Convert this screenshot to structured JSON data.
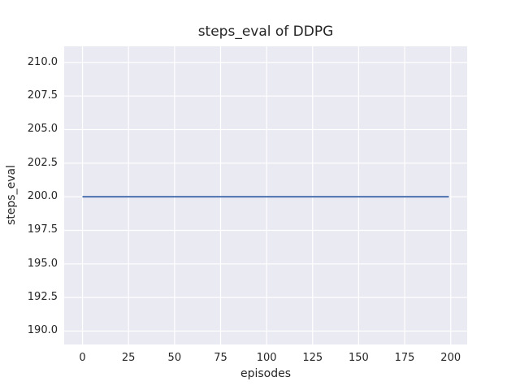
{
  "figure": {
    "background_color": "#ffffff",
    "plot_background_color": "#eaeaf2",
    "grid_color": "#ffffff",
    "text_color": "#262626"
  },
  "chart_data": {
    "type": "line",
    "title": "steps_eval of DDPG",
    "xlabel": "episodes",
    "ylabel": "steps_eval",
    "xlim": [
      -9.95,
      208.95
    ],
    "ylim": [
      189.0,
      211.2
    ],
    "grid": true,
    "legend": false,
    "xticks": {
      "values": [
        0,
        25,
        50,
        75,
        100,
        125,
        150,
        175,
        200
      ],
      "labels": [
        "0",
        "25",
        "50",
        "75",
        "100",
        "125",
        "150",
        "175",
        "200"
      ]
    },
    "yticks": {
      "values": [
        190.0,
        192.5,
        195.0,
        197.5,
        200.0,
        202.5,
        205.0,
        207.5,
        210.0
      ],
      "labels": [
        "190.0",
        "192.5",
        "195.0",
        "197.5",
        "200.0",
        "202.5",
        "205.0",
        "207.5",
        "210.0"
      ]
    },
    "series": [
      {
        "name": "steps_eval",
        "color": "#4c72b0",
        "line_width": 2,
        "x": [
          0,
          199
        ],
        "y": [
          200,
          200
        ]
      }
    ]
  }
}
